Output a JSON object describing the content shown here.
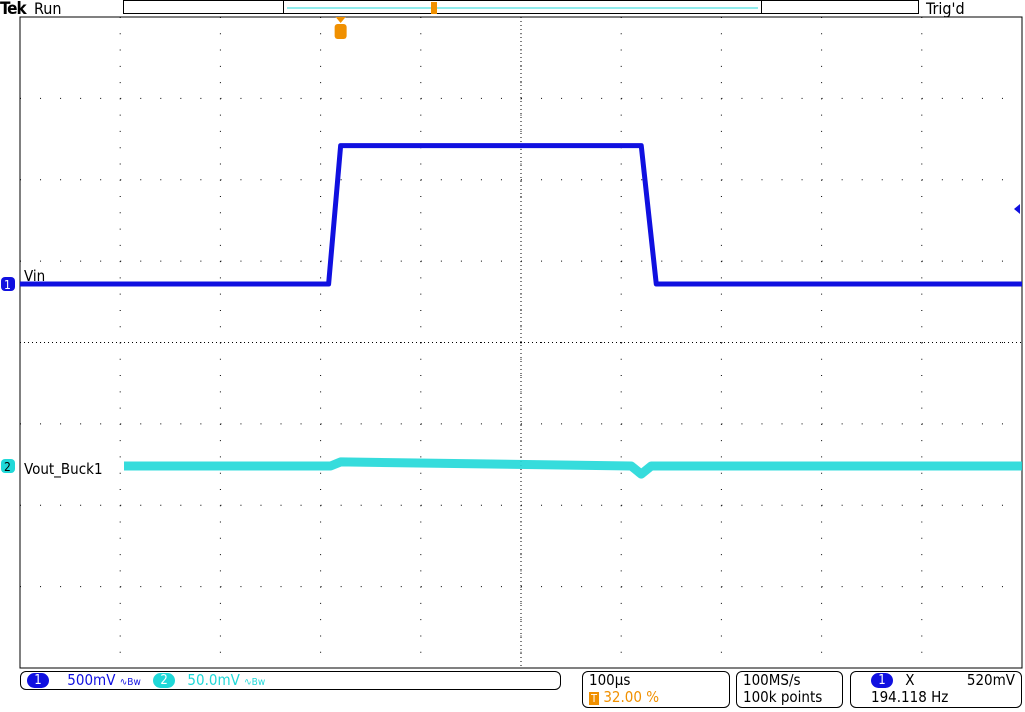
{
  "header": {
    "brand": "Tek",
    "run_state": "Run",
    "trigger_state": "Trig'd"
  },
  "channels": [
    {
      "number": "1",
      "label": "Vin",
      "scale": "500mV",
      "bandwidth_icon": "bandwidth-limit-icon",
      "color": "#1010e0"
    },
    {
      "number": "2",
      "label": "Vout_Buck1",
      "scale": "50.0mV",
      "bandwidth_icon": "bandwidth-limit-icon",
      "color": "#20d8d8"
    }
  ],
  "timebase": {
    "scale": "100µs",
    "trigger_position": "32.00 %",
    "trigger_icon": "T"
  },
  "acquisition": {
    "sample_rate": "100MS/s",
    "record_length": "100k points"
  },
  "trigger": {
    "source": "1",
    "slope_icon": "X",
    "level": "520mV",
    "frequency": "194.118 Hz"
  },
  "colors": {
    "trigger": "#f09000",
    "grid": "#000000"
  },
  "chart_data": {
    "type": "line",
    "grid": true,
    "x_divisions": 10,
    "y_divisions": 8,
    "xlabel": "",
    "ylabel": "",
    "series": [
      {
        "name": "Vin",
        "x_us": [
          -320,
          -12,
          0,
          300,
          315,
          680
        ],
        "y_div_from_marker": [
          0,
          0,
          1.7,
          1.7,
          0,
          0
        ]
      },
      {
        "name": "Vout_Buck1",
        "x_us": [
          -220,
          -10,
          0,
          290,
          300,
          310,
          680
        ],
        "y_div_from_marker": [
          0,
          0,
          0.05,
          0,
          -0.1,
          0,
          0
        ]
      }
    ]
  }
}
